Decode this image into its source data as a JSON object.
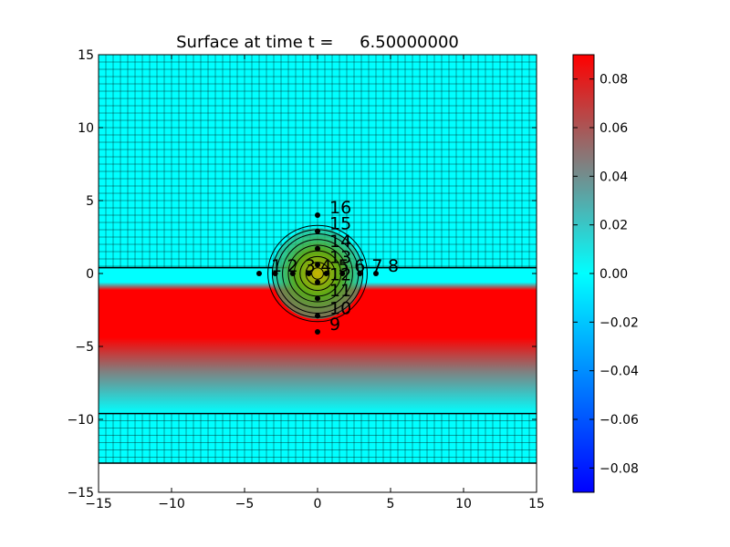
{
  "chart_data": {
    "type": "heatmap",
    "title": "Surface at time t =     6.50000000",
    "xlabel": "",
    "ylabel": "",
    "xlim": [
      -15,
      15
    ],
    "ylim": [
      -15,
      15
    ],
    "xticks": [
      -15,
      -10,
      -5,
      0,
      5,
      10,
      15
    ],
    "yticks": [
      -15,
      -10,
      -5,
      0,
      5,
      10,
      15
    ],
    "grid_cell_size": 0.5,
    "domain": {
      "x": [
        -15,
        15
      ],
      "y": [
        -13,
        15
      ]
    },
    "refined_band_edges_y": [
      0.4,
      -9.6
    ],
    "surface_band": {
      "y_top": -0.6,
      "y_plateau_bottom": -4.8,
      "y_fade_end": -9.6
    },
    "mound": {
      "x": 0,
      "y": 0,
      "contour_radii": [
        0.4,
        0.8,
        1.2,
        1.6,
        2.0,
        2.4,
        2.8,
        3.1,
        3.4
      ]
    },
    "colorbar": {
      "range": [
        -0.09,
        0.09
      ],
      "ticks": [
        "-0.08",
        "-0.06",
        "-0.04",
        "-0.02",
        "0.00",
        "0.02",
        "0.04",
        "0.06",
        "0.08"
      ],
      "tick_values": [
        -0.08,
        -0.06,
        -0.04,
        -0.02,
        0.0,
        0.02,
        0.04,
        0.06,
        0.08
      ],
      "colors": {
        "low": "#0000ff",
        "mid": "#00ffff",
        "midhigh": "#808080",
        "high": "#ff0000"
      }
    },
    "gauges": [
      {
        "id": "1",
        "x": -4.0,
        "y": 0.0
      },
      {
        "id": "2",
        "x": -2.9,
        "y": 0.0
      },
      {
        "id": "3",
        "x": -1.7,
        "y": 0.0
      },
      {
        "id": "4",
        "x": -0.6,
        "y": 0.0
      },
      {
        "id": "5",
        "x": 0.6,
        "y": 0.0
      },
      {
        "id": "6",
        "x": 1.7,
        "y": 0.0
      },
      {
        "id": "7",
        "x": 2.9,
        "y": 0.0
      },
      {
        "id": "8",
        "x": 4.0,
        "y": 0.0
      },
      {
        "id": "9",
        "x": 0.0,
        "y": -4.0
      },
      {
        "id": "10",
        "x": 0.0,
        "y": -2.9
      },
      {
        "id": "11",
        "x": 0.0,
        "y": -1.7
      },
      {
        "id": "12",
        "x": 0.0,
        "y": -0.6
      },
      {
        "id": "13",
        "x": 0.0,
        "y": 0.6
      },
      {
        "id": "14",
        "x": 0.0,
        "y": 1.7
      },
      {
        "id": "15",
        "x": 0.0,
        "y": 2.9
      },
      {
        "id": "16",
        "x": 0.0,
        "y": 4.0
      }
    ]
  }
}
